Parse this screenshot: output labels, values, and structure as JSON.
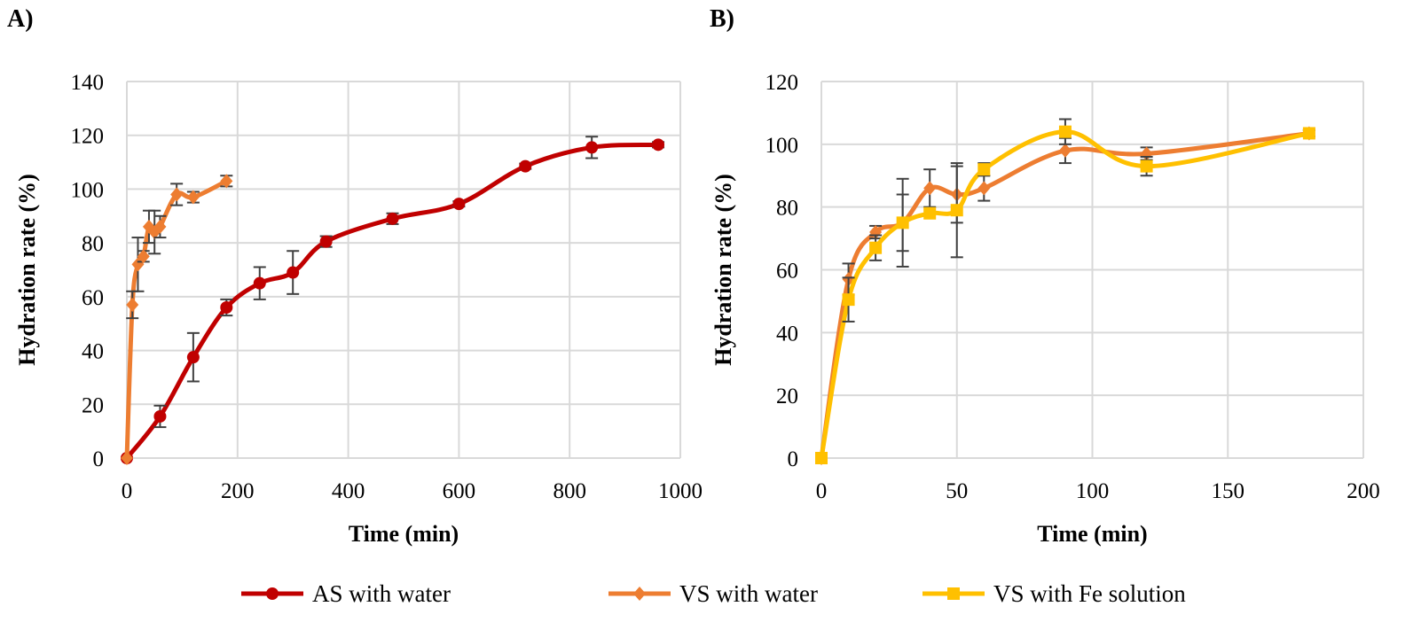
{
  "chart_data": [
    {
      "type": "line",
      "panel_label": "A)",
      "xlabel": "Time (min)",
      "ylabel": "Hydration rate (%)",
      "xlim": [
        0,
        1000
      ],
      "ylim": [
        0,
        140
      ],
      "xticks": [
        0,
        200,
        400,
        600,
        800,
        1000
      ],
      "yticks": [
        0,
        20,
        40,
        60,
        80,
        100,
        120,
        140
      ],
      "grid": true,
      "series": [
        {
          "name": "AS with water",
          "color": "#C00000",
          "marker": "circle",
          "x": [
            0,
            60,
            120,
            180,
            240,
            300,
            360,
            480,
            600,
            720,
            840,
            960
          ],
          "y": [
            0,
            15.5,
            37.5,
            56,
            65,
            69,
            80.5,
            89,
            94.5,
            108.5,
            115.5,
            116.5
          ],
          "err": [
            0,
            4,
            9,
            3,
            6,
            8,
            2,
            2,
            1,
            1,
            4,
            1
          ]
        },
        {
          "name": "VS with water",
          "color": "#ED7D31",
          "marker": "diamond",
          "x": [
            0,
            10,
            20,
            30,
            40,
            50,
            60,
            90,
            120,
            180
          ],
          "y": [
            0,
            57,
            72,
            75,
            86,
            84,
            86,
            98,
            97,
            103
          ],
          "err": [
            0,
            5,
            10,
            2,
            6,
            8,
            4,
            4,
            2,
            2
          ]
        }
      ]
    },
    {
      "type": "line",
      "panel_label": "B)",
      "xlabel": "Time (min)",
      "ylabel": "Hydration rate (%)",
      "xlim": [
        0,
        200
      ],
      "ylim": [
        0,
        120
      ],
      "xticks": [
        0,
        50,
        100,
        150,
        200
      ],
      "yticks": [
        0,
        20,
        40,
        60,
        80,
        100,
        120
      ],
      "grid": true,
      "series": [
        {
          "name": "VS with water",
          "color": "#ED7D31",
          "marker": "diamond",
          "x": [
            0,
            10,
            20,
            30,
            40,
            50,
            60,
            90,
            120,
            180
          ],
          "y": [
            0,
            57,
            72,
            75,
            86,
            84,
            86,
            98,
            97,
            103.5
          ],
          "err": [
            0,
            5,
            2,
            14,
            6,
            9,
            4,
            4,
            2,
            1
          ]
        },
        {
          "name": "VS with Fe solution",
          "color": "#FFC000",
          "marker": "square",
          "x": [
            0,
            10,
            20,
            30,
            40,
            50,
            60,
            90,
            120,
            180
          ],
          "y": [
            0,
            50.5,
            67,
            75,
            78,
            79,
            92,
            104,
            93,
            103.5
          ],
          "err": [
            0,
            7,
            4,
            9,
            0,
            15,
            2,
            4,
            3,
            1
          ]
        }
      ]
    }
  ],
  "legend": {
    "placement": "bottom",
    "items": [
      {
        "label": "AS with water",
        "color": "#C00000",
        "marker": "circle"
      },
      {
        "label": "VS with water",
        "color": "#ED7D31",
        "marker": "diamond"
      },
      {
        "label": "VS with Fe solution",
        "color": "#FFC000",
        "marker": "square"
      }
    ]
  }
}
